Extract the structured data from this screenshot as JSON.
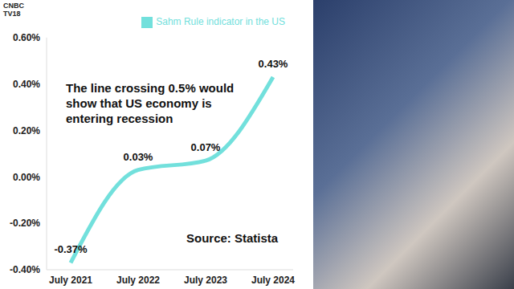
{
  "branding": "CNBC TV18",
  "chart_data": {
    "type": "line",
    "categories": [
      "July 2021",
      "July 2022",
      "July 2023",
      "July 2024"
    ],
    "series": [
      {
        "name": "Sahm Rule indicator in the US",
        "color": "#72e0dc",
        "values": [
          -0.37,
          0.03,
          0.07,
          0.43
        ],
        "value_labels": [
          "-0.37%",
          "0.03%",
          "0.07%",
          "0.43%"
        ],
        "line_style": "smooth",
        "marker": "none"
      }
    ],
    "ylim": [
      -0.4,
      0.6
    ],
    "yticks": [
      {
        "value": -0.4,
        "label": "-0.40%"
      },
      {
        "value": -0.2,
        "label": "-0.20%"
      },
      {
        "value": 0,
        "label": "0.00%"
      },
      {
        "value": 0.2,
        "label": "0.20%"
      },
      {
        "value": 0.4,
        "label": "0.40%"
      },
      {
        "value": 0.6,
        "label": "0.60%"
      }
    ],
    "annotation": "The line crossing 0.5% would show that US economy is entering recession",
    "source": "Source: Statista",
    "legend": "top",
    "grid": false,
    "data_labels": true
  }
}
